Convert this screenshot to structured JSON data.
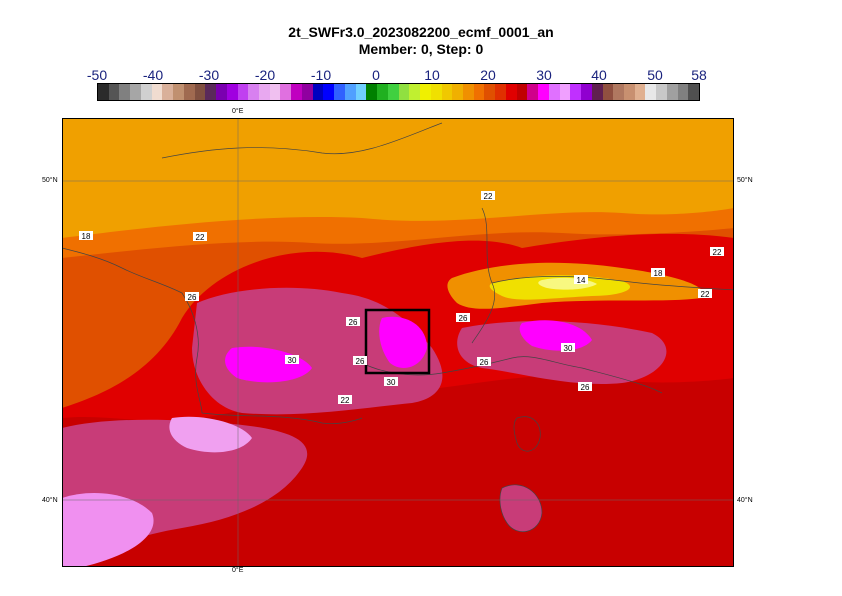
{
  "title": {
    "line1": "2t_SWFr3.0_2023082200_ecmf_0001_an",
    "line2": "Member: 0, Step: 0"
  },
  "colorbar": {
    "labels": [
      "-50",
      "-40",
      "-30",
      "-20",
      "-10",
      "0",
      "10",
      "20",
      "30",
      "40",
      "50",
      "58"
    ],
    "colors": [
      "#2b2b2b",
      "#555555",
      "#808080",
      "#a6a6a6",
      "#d0d0d0",
      "#f0dcd0",
      "#d9b09a",
      "#c09070",
      "#a06a50",
      "#805040",
      "#5a2a5a",
      "#7a00b0",
      "#a000e0",
      "#c040f0",
      "#d880f0",
      "#e8a8f0",
      "#f0c0f0",
      "#e070e0",
      "#c000c0",
      "#9000a0",
      "#0000c0",
      "#0000ff",
      "#3060ff",
      "#50a0ff",
      "#70d0ff",
      "#008000",
      "#20b020",
      "#40d040",
      "#90e040",
      "#c0f030",
      "#f0f000",
      "#f0e000",
      "#f0c800",
      "#f0b000",
      "#f09000",
      "#f07000",
      "#e05000",
      "#e03000",
      "#e00000",
      "#c00000",
      "#d0008a",
      "#ff00ff",
      "#e070ff",
      "#f0a0ff",
      "#c030ff",
      "#9000d0",
      "#602050",
      "#905040",
      "#b07860",
      "#c89070",
      "#e0b090",
      "#e8e8e8",
      "#c8c8c8",
      "#a0a0a0",
      "#808080",
      "#505050"
    ]
  },
  "map": {
    "lon_label": "0°E",
    "lat_labels": [
      "50°N",
      "40°N"
    ],
    "contour_labels": [
      "18",
      "22",
      "22",
      "22",
      "22",
      "26",
      "26",
      "26",
      "26",
      "26",
      "30",
      "30",
      "30",
      "14",
      "18",
      "22",
      "26"
    ]
  }
}
